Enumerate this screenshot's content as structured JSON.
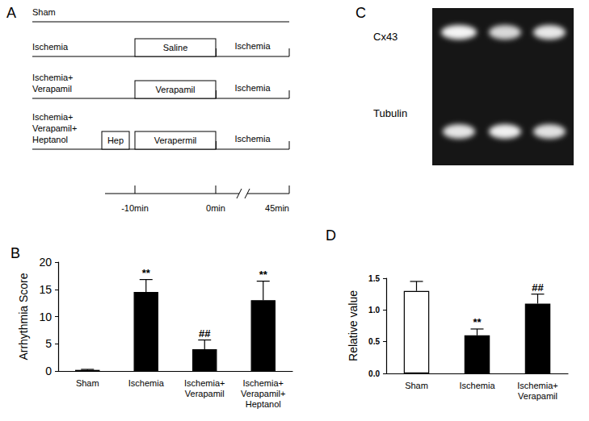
{
  "chart_data": [
    {
      "type": "bar",
      "title": "B",
      "categories": [
        "Sham",
        "Ischemia",
        "Ischemia+\nVerapamil",
        "Ischemia+\nVerapamil+\nHeptanol"
      ],
      "values": [
        0.2,
        14.5,
        4,
        13
      ],
      "errors": [
        0.1,
        2.3,
        1.7,
        3.5
      ],
      "annotations": [
        null,
        "**",
        "##",
        "**"
      ],
      "colors": [
        "#000000",
        "#000000",
        "#000000",
        "#000000"
      ],
      "ylabel": "Arrhythmia Score",
      "ylim": [
        0,
        20
      ],
      "yticks": [
        0,
        5,
        10,
        15,
        20
      ],
      "grid": false
    },
    {
      "type": "bar",
      "title": "D",
      "categories": [
        "Sham",
        "Ischemia",
        "Ischemia+\nVerapamil"
      ],
      "values": [
        1.3,
        0.6,
        1.1
      ],
      "errors": [
        0.15,
        0.1,
        0.15
      ],
      "annotations": [
        null,
        "**",
        "##"
      ],
      "colors": [
        "#ffffff",
        "#000000",
        "#000000"
      ],
      "ylabel": "Relative value",
      "ylim": [
        0,
        1.5
      ],
      "yticks": [
        {
          "value": 0,
          "label": "0.0"
        },
        {
          "value": 0.5,
          "label": "0.5"
        },
        {
          "value": 1,
          "label": "1.0"
        },
        {
          "value": 1.5,
          "label": "1.5"
        }
      ],
      "grid": false
    }
  ],
  "protocol": {
    "label": "A",
    "groups": [
      {
        "name": "Sham",
        "phases": []
      },
      {
        "name": "Ischemia",
        "phases": [
          "Saline",
          "Ischemia"
        ]
      },
      {
        "name": "Ischemia+\nVerapamil",
        "phases": [
          "Verapamil",
          "Ischemia"
        ]
      },
      {
        "name": "Ischemia+\nVerapamil+\nHeptanol",
        "phases": [
          "Hep",
          "Verapermil",
          "Ischemia"
        ]
      }
    ],
    "time_labels": [
      "-10min",
      "0min",
      "45min"
    ]
  },
  "blot": {
    "label": "C",
    "rows": [
      "Cx43",
      "Tubulin"
    ]
  }
}
